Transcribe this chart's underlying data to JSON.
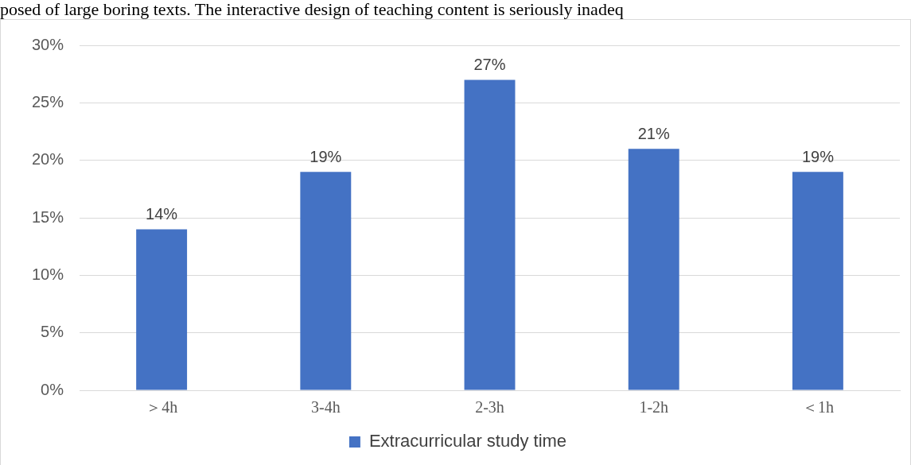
{
  "chart_data": {
    "type": "bar",
    "categories": [
      "＞4h",
      "3-4h",
      "2-3h",
      "1-2h",
      "＜1h"
    ],
    "series": [
      {
        "name": "Extracurricular study time",
        "color": "#4472c4",
        "values": [
          14,
          19,
          27,
          21,
          19
        ],
        "value_labels": [
          "14%",
          "19%",
          "27%",
          "21%",
          "19%"
        ]
      }
    ],
    "ylim": [
      0,
      30
    ],
    "yticks": [
      {
        "value": 0,
        "label": "0%"
      },
      {
        "value": 5,
        "label": "5%"
      },
      {
        "value": 10,
        "label": "10%"
      },
      {
        "value": 15,
        "label": "15%"
      },
      {
        "value": 20,
        "label": "20%"
      },
      {
        "value": 25,
        "label": "25%"
      },
      {
        "value": 30,
        "label": "30%"
      }
    ],
    "grid": "y",
    "legend": "bottom",
    "annotations": [
      "posed of large boring texts. The interactive design of teaching content is seriously inadeq"
    ]
  }
}
